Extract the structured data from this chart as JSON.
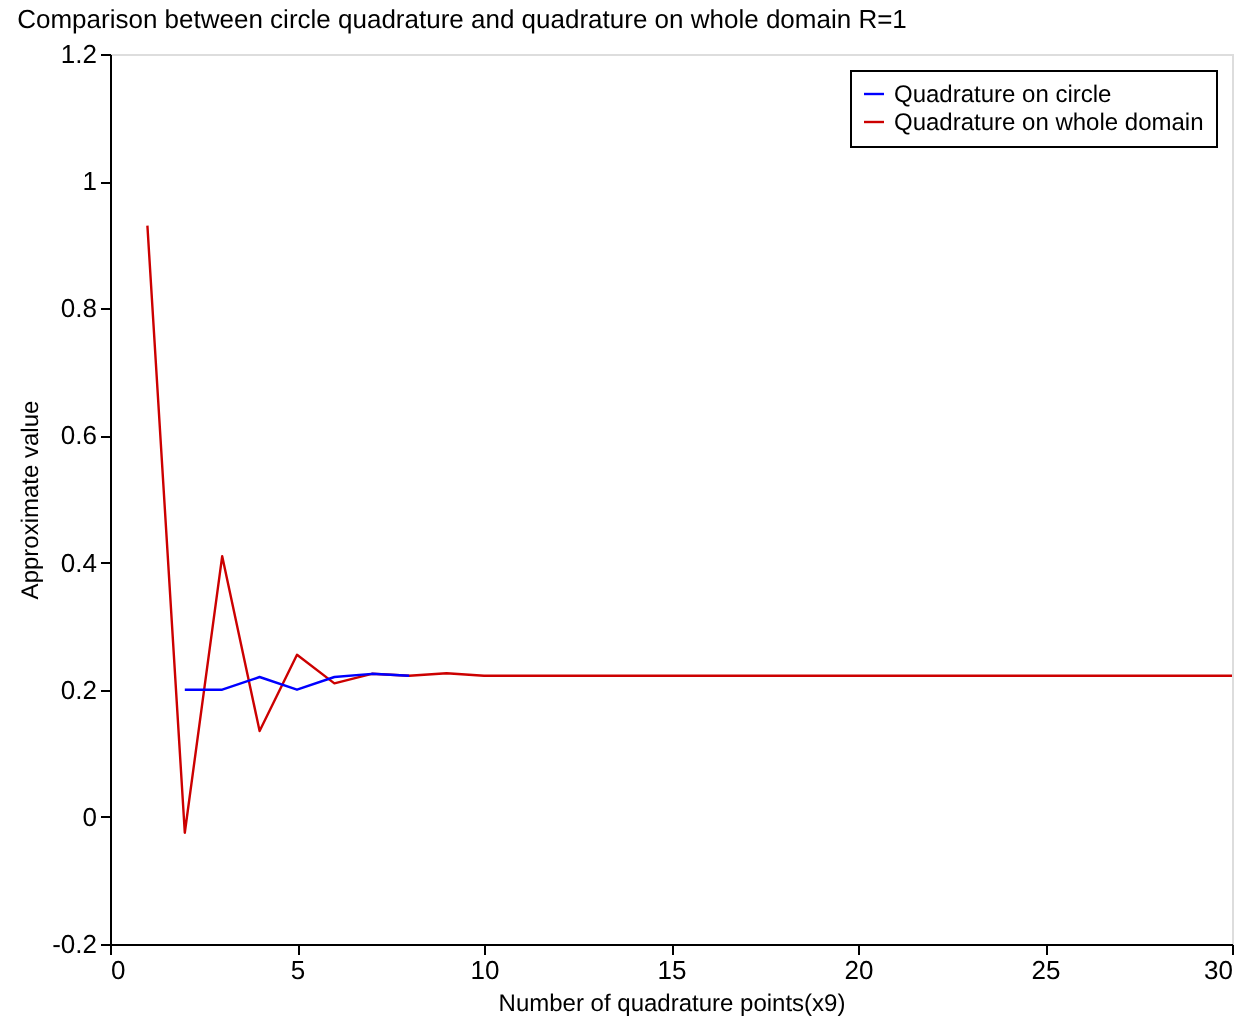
{
  "chart_data": {
    "type": "line",
    "title": "Comparison between circle quadrature and quadrature on whole domain  R=1",
    "xlabel": "Number of quadrature points(x9)",
    "ylabel": "Approximate value",
    "xlim": [
      0,
      30
    ],
    "xticks": [
      0,
      5,
      10,
      15,
      20,
      25,
      30
    ],
    "ylim": [
      -0.2,
      1.2
    ],
    "yticks": [
      -0.2,
      0,
      0.2,
      0.4,
      0.6,
      0.8,
      1,
      1.2
    ],
    "grid": false,
    "legend": "top right",
    "marker": "none",
    "line_style": "solid",
    "series": [
      {
        "name": "Quadrature on circle",
        "color": "#0000ff",
        "x": [
          2,
          3,
          4,
          5,
          6,
          7,
          8
        ],
        "values": [
          0.2,
          0.2,
          0.22,
          0.2,
          0.22,
          0.225,
          0.222
        ]
      },
      {
        "name": "Quadrature on whole domain",
        "color": "#cc0000",
        "x": [
          1,
          2,
          3,
          4,
          5,
          6,
          7,
          8,
          9,
          10,
          15,
          20,
          25,
          30
        ],
        "values": [
          0.93,
          -0.025,
          0.41,
          0.135,
          0.255,
          0.21,
          0.225,
          0.222,
          0.226,
          0.222,
          0.222,
          0.222,
          0.222,
          0.222
        ]
      }
    ]
  }
}
